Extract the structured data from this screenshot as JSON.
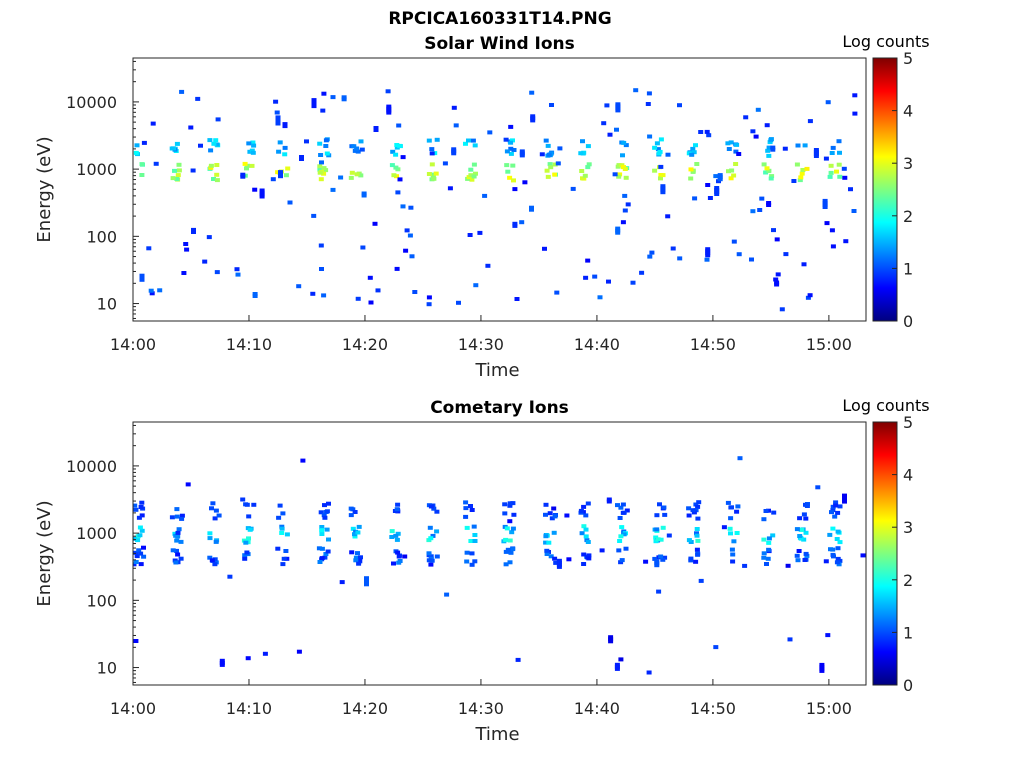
{
  "figure_title": "RPCICA160331T14.PNG",
  "colors": {
    "colormap": [
      "#00007f",
      "#0000ff",
      "#007fff",
      "#00ffff",
      "#7fff7f",
      "#ffff00",
      "#ff7f00",
      "#ff0000",
      "#7f0000"
    ],
    "axis": "#262626",
    "background": "#ffffff"
  },
  "chart_data": [
    {
      "type": "heatmap",
      "title": "Solar Wind Ions",
      "xlabel": "Time",
      "ylabel": "Energy (eV)",
      "yscale": "log",
      "ylim": [
        5.5,
        45000
      ],
      "xlim_minutes": [
        0,
        63.2
      ],
      "xticks": [
        "14:00",
        "14:10",
        "14:20",
        "14:30",
        "14:40",
        "14:50",
        "15:00"
      ],
      "yticks": [
        "10",
        "100",
        "1000",
        "10000"
      ],
      "colorbar": {
        "title": "Log counts",
        "range": [
          0,
          5
        ],
        "ticks": [
          "0",
          "1",
          "2",
          "3",
          "4",
          "5"
        ]
      },
      "pulse_minutes": [
        0.3,
        3.6,
        6.8,
        9.8,
        12.7,
        16.3,
        19.0,
        22.4,
        25.7,
        28.9,
        32.2,
        35.8,
        38.8,
        42.0,
        45.2,
        48.1,
        51.5,
        54.6,
        57.5,
        60.3
      ],
      "bands": [
        {
          "energy": 900,
          "log_counts": 2.6,
          "variation": 0.5
        },
        {
          "energy": 2100,
          "log_counts": 1.4,
          "variation": 0.4
        }
      ],
      "background_level": 0.9,
      "background_count": 190
    },
    {
      "type": "heatmap",
      "title": "Cometary Ions",
      "xlabel": "Time",
      "ylabel": "Energy (eV)",
      "yscale": "log",
      "ylim": [
        5.5,
        45000
      ],
      "xlim_minutes": [
        0,
        63.2
      ],
      "xticks": [
        "14:00",
        "14:10",
        "14:20",
        "14:30",
        "14:40",
        "14:50",
        "15:00"
      ],
      "yticks": [
        "10",
        "100",
        "1000",
        "10000"
      ],
      "colorbar": {
        "title": "Log counts",
        "range": [
          0,
          5
        ],
        "ticks": [
          "0",
          "1",
          "2",
          "3",
          "4",
          "5"
        ]
      },
      "pulse_minutes": [
        0.3,
        3.6,
        6.8,
        9.8,
        12.7,
        16.3,
        19.0,
        22.4,
        25.7,
        28.9,
        32.2,
        35.8,
        38.8,
        42.0,
        45.2,
        48.1,
        51.5,
        54.6,
        57.5,
        60.3
      ],
      "bands": [
        {
          "energy": 950,
          "log_counts": 1.5,
          "variation": 0.5
        },
        {
          "energy": 2150,
          "log_counts": 0.9,
          "variation": 0.2
        },
        {
          "energy": 450,
          "log_counts": 0.9,
          "variation": 0.3
        }
      ],
      "background_level": 0.8,
      "background_count": 45
    }
  ]
}
